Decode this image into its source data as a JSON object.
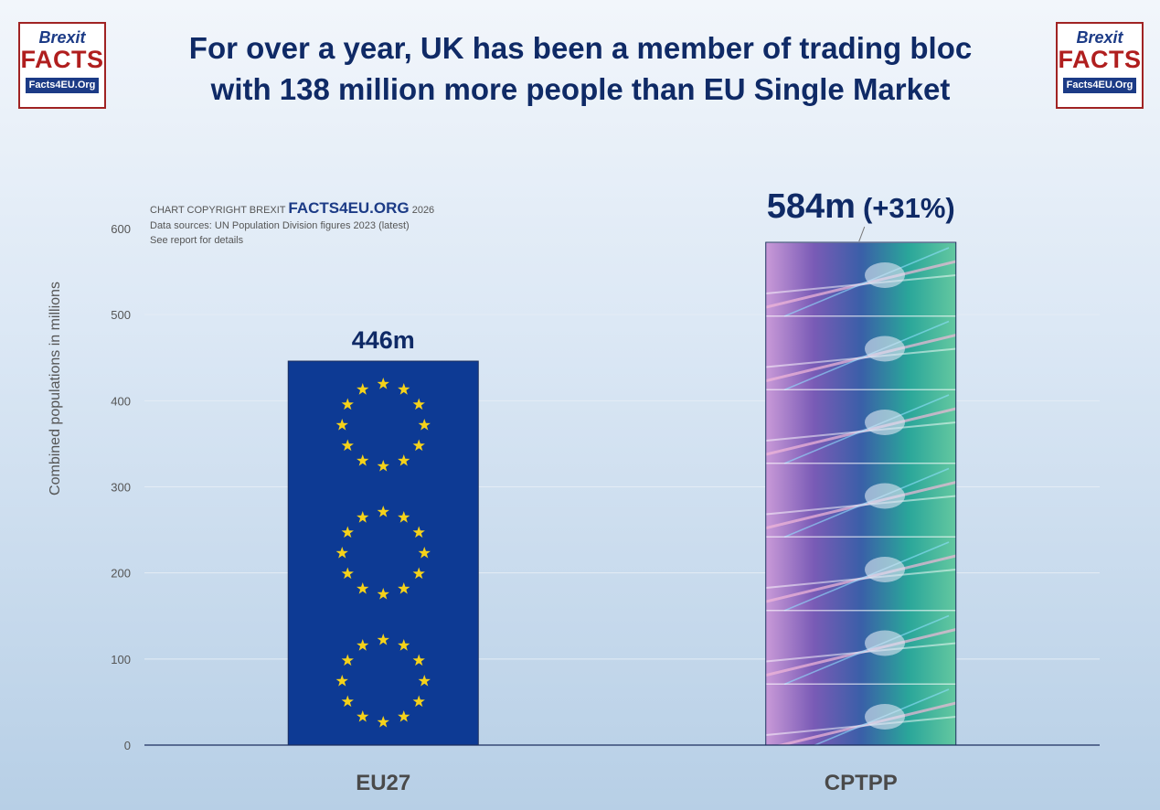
{
  "logos": {
    "left": {
      "line1": "Brexit",
      "line2": "FACTS",
      "line3": "Facts4EU.Org"
    },
    "right": {
      "line1": "Brexit",
      "line2": "FACTS",
      "line3": "Facts4EU.Org"
    }
  },
  "title": {
    "line1": "For over a year, UK has been a member of trading bloc",
    "line2": "with 138 million more people than EU Single Market"
  },
  "copyright": {
    "prefix": "CHART COPYRIGHT BREXIT",
    "brand": "FACTS4EU.ORG",
    "year": "2026",
    "sources": "Data sources: UN Population Division figures 2023 (latest)",
    "note": "See report for details"
  },
  "colors": {
    "eu_blue": "#0d3a94",
    "eu_star": "#f5d21a",
    "label": "#0f2a66",
    "axis_text": "#555555"
  },
  "chart_data": {
    "type": "bar",
    "categories": [
      "EU27",
      "CPTPP"
    ],
    "values": [
      446,
      584
    ],
    "data_labels": [
      "446m",
      "584m"
    ],
    "data_label_suffix": [
      "",
      "(+31%)"
    ],
    "ylabel": "Combined populations in millions",
    "ylim": [
      0,
      600
    ],
    "yticks": [
      0,
      100,
      200,
      300,
      400,
      500,
      600
    ],
    "grid": true,
    "bar_fills": [
      "eu-flag",
      "cptpp-image"
    ]
  }
}
